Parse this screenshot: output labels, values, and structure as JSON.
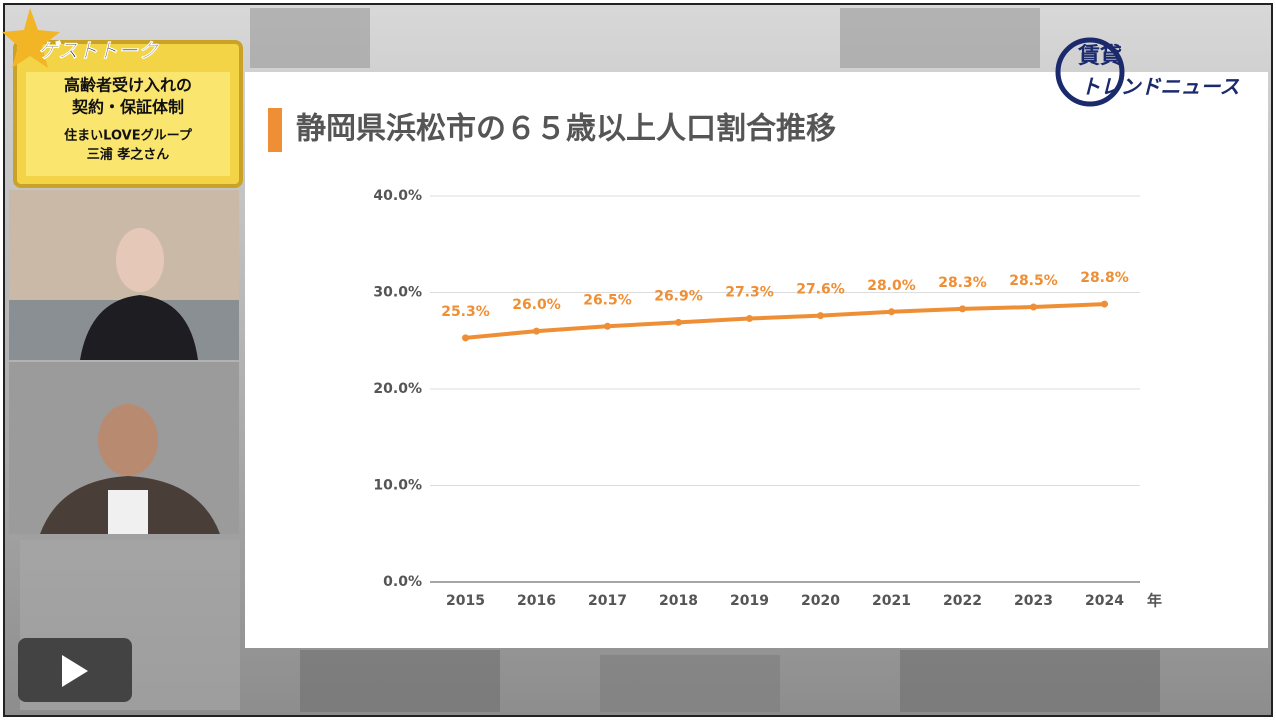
{
  "chart_data": {
    "type": "line",
    "title": "静岡県浜松市の６５歳以上人口割合推移",
    "categories": [
      "2015",
      "2016",
      "2017",
      "2018",
      "2019",
      "2020",
      "2021",
      "2022",
      "2023",
      "2024"
    ],
    "x_label": "年",
    "values": [
      25.3,
      26.0,
      26.5,
      26.9,
      27.3,
      27.6,
      28.0,
      28.3,
      28.5,
      28.8
    ],
    "value_labels": [
      "25.3%",
      "26.0%",
      "26.5%",
      "26.9%",
      "27.3%",
      "27.6%",
      "28.0%",
      "28.3%",
      "28.5%",
      "28.8%"
    ],
    "color": "#ef8f35",
    "ylim": [
      0,
      40
    ],
    "yticks": [
      {
        "value": 0,
        "label": "0.0%"
      },
      {
        "value": 10,
        "label": "10.0%"
      },
      {
        "value": 20,
        "label": "20.0%"
      },
      {
        "value": 30,
        "label": "30.0%"
      },
      {
        "value": 40,
        "label": "40.0%"
      }
    ],
    "grid": true
  },
  "guest_panel": {
    "label": "ゲストトーク",
    "lines": [
      "高齢者受け入れの",
      "契約・保証体制",
      "住まいLOVEグループ",
      "三浦 孝之さん"
    ]
  },
  "logo": {
    "top": "賃貸",
    "bottom": "トレンドニュース"
  }
}
